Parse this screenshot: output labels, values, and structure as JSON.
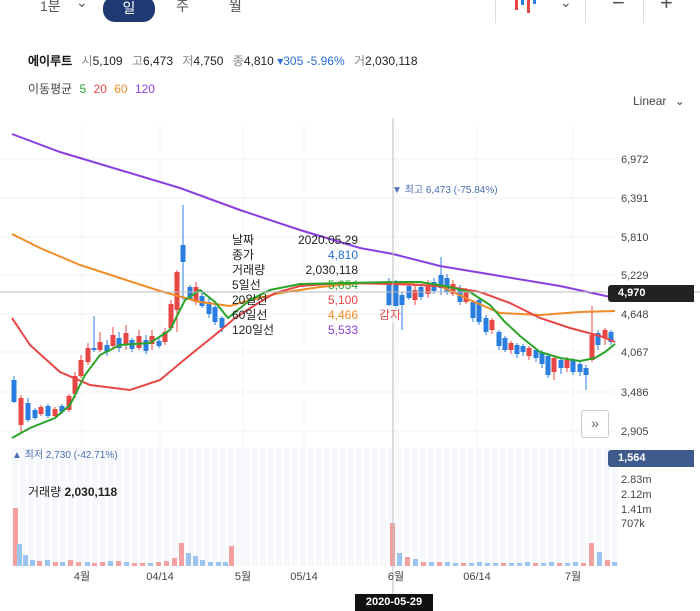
{
  "toolbar": {
    "periods": [
      "1분",
      "일",
      "주",
      "월"
    ],
    "active_period": "일"
  },
  "stock": {
    "name": "에이루트",
    "open_label": "시",
    "open": "5,109",
    "high_label": "고",
    "high": "6,473",
    "low_label": "저",
    "low": "4,750",
    "close_label": "종",
    "close": "4,810",
    "change": "305",
    "change_pct": "-5.96%",
    "volume_label": "거",
    "volume": "2,030,118"
  },
  "ma_legend": {
    "label": "이동평균",
    "items": [
      {
        "text": "5",
        "color": "#2aa52a"
      },
      {
        "text": "20",
        "color": "#e84545"
      },
      {
        "text": "60",
        "color": "#f08c28"
      },
      {
        "text": "120",
        "color": "#8a3fe0"
      }
    ]
  },
  "scale_label": "Linear",
  "price_axis": [
    "6,972",
    "6,391",
    "5,810",
    "5,229",
    "4,648",
    "4,067",
    "3,486",
    "2,905"
  ],
  "current_price_badge": "4,970",
  "current_price_color": "#222222",
  "low_badge": "1,564",
  "low_badge_color": "#3f5b8e",
  "high_note": "▼ 최고 6,473 (-75.84%)",
  "low_note": "▲ 최저 2,730 (-42.71%)",
  "gamja_label": "감자",
  "tooltip": {
    "rows": [
      {
        "k": "날짜",
        "v": "2020.05.29",
        "color": "#222222"
      },
      {
        "k": "종가",
        "v": "4,810",
        "color": "#2a6ed8"
      },
      {
        "k": "거래량",
        "v": "2,030,118",
        "color": "#222222"
      },
      {
        "k": "5일선",
        "v": "5,054",
        "color": "#2aa52a"
      },
      {
        "k": "20일선",
        "v": "5,100",
        "color": "#e84545"
      },
      {
        "k": "60일선",
        "v": "4,466",
        "color": "#f08c28"
      },
      {
        "k": "120일선",
        "v": "5,533",
        "color": "#8a3fe0"
      }
    ]
  },
  "volume_section": {
    "label": "거래량",
    "value": "2,030,118",
    "axis": [
      "2.83m",
      "2.12m",
      "1.41m",
      "707k"
    ]
  },
  "x_axis": [
    "4월",
    "04/14",
    "5월",
    "05/14",
    "6월",
    "06/14",
    "7월"
  ],
  "selected_date": "2020-05-29",
  "colors": {
    "up": "#e84545",
    "down": "#2a7ee0",
    "ma5": "#2aa52a",
    "ma20": "#e84545",
    "ma60": "#f08c28",
    "ma120": "#8a3fe0"
  }
}
